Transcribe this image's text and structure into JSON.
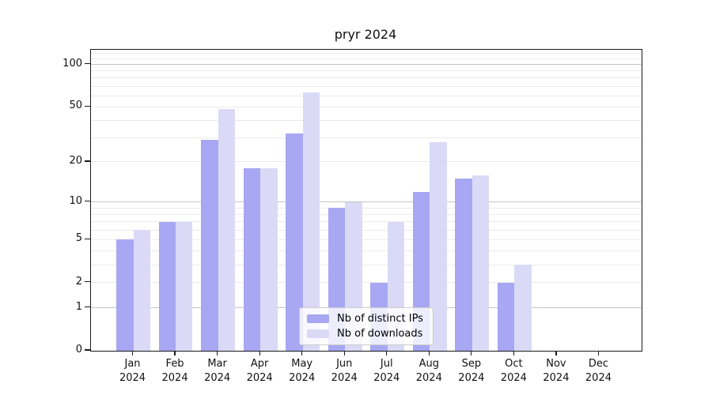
{
  "title": "pryr 2024",
  "legend": {
    "items": [
      {
        "label": "Nb of distinct IPs",
        "color": "#a7a7f3"
      },
      {
        "label": "Nb of downloads",
        "color": "#dadaf7"
      }
    ],
    "position": "lower center"
  },
  "chart_data": {
    "type": "bar",
    "title": "pryr 2024",
    "categories": [
      "Jan",
      "Feb",
      "Mar",
      "Apr",
      "May",
      "Jun",
      "Jul",
      "Aug",
      "Sep",
      "Oct",
      "Nov",
      "Dec"
    ],
    "category_year": "2024",
    "series": [
      {
        "name": "Nb of distinct IPs",
        "color": "#a7a7f3",
        "values": [
          5,
          7,
          29,
          18,
          32,
          9,
          2,
          12,
          15,
          2,
          0,
          0
        ]
      },
      {
        "name": "Nb of downloads",
        "color": "#dadaf7",
        "values": [
          6,
          7,
          48,
          18,
          63,
          10,
          7,
          28,
          16,
          3,
          0,
          0
        ]
      }
    ],
    "xlabel": "",
    "ylabel": "",
    "yscale": "log1p",
    "ylim": [
      0,
      127
    ],
    "y_ticks": [
      0,
      1,
      2,
      5,
      10,
      20,
      50,
      100
    ],
    "gridlines_major": [
      1,
      10,
      100
    ],
    "gridlines_minor": [
      2,
      3,
      4,
      5,
      6,
      7,
      8,
      9,
      20,
      30,
      40,
      50,
      60,
      70,
      80,
      90,
      110,
      120
    ],
    "grid": "on",
    "legend_position": "lower center"
  },
  "colors": {
    "spine": "#1a1a1a",
    "grid_minor": "#ebebeb",
    "grid_major": "#c4c4c4",
    "background": "#ffffff"
  }
}
